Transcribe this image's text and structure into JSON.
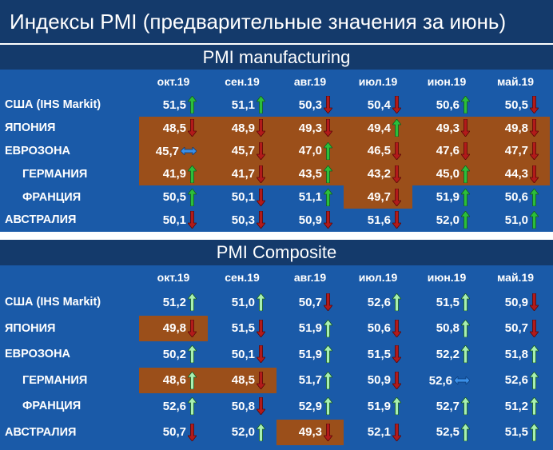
{
  "title": "Индексы PMI (предварительные значения за июнь)",
  "colors": {
    "header_bg": "#143a6b",
    "panel_bg": "#1a5aa8",
    "highlight": "#9b4f1a",
    "arrow_up_mfg": "#2bbf3a",
    "arrow_up_comp": "#a8f0b0",
    "arrow_down": "#b21a1a",
    "arrow_flat": "#3a8fe8"
  },
  "chart_data": [
    {
      "type": "table",
      "title": "PMI manufacturing",
      "columns": [
        "окт.19",
        "сен.19",
        "авг.19",
        "июл.19",
        "июн.19",
        "май.19"
      ],
      "rows": [
        {
          "country": "США (IHS Markit)",
          "indent": false,
          "values": [
            "51,5",
            "51,1",
            "50,3",
            "50,4",
            "50,6",
            "50,5"
          ],
          "trend": [
            "up",
            "up",
            "down",
            "down",
            "up",
            "down"
          ],
          "highlight": [
            false,
            false,
            false,
            false,
            false,
            false
          ]
        },
        {
          "country": "ЯПОНИЯ",
          "indent": false,
          "values": [
            "48,5",
            "48,9",
            "49,3",
            "49,4",
            "49,3",
            "49,8"
          ],
          "trend": [
            "down",
            "down",
            "down",
            "up",
            "down",
            "down"
          ],
          "highlight": [
            true,
            true,
            true,
            true,
            true,
            true
          ]
        },
        {
          "country": "ЕВРОЗОНА",
          "indent": false,
          "values": [
            "45,7",
            "45,7",
            "47,0",
            "46,5",
            "47,6",
            "47,7"
          ],
          "trend": [
            "flat",
            "down",
            "up",
            "down",
            "down",
            "down"
          ],
          "highlight": [
            true,
            true,
            true,
            true,
            true,
            true
          ]
        },
        {
          "country": "ГЕРМАНИЯ",
          "indent": true,
          "values": [
            "41,9",
            "41,7",
            "43,5",
            "43,2",
            "45,0",
            "44,3"
          ],
          "trend": [
            "up",
            "down",
            "up",
            "down",
            "up",
            "down"
          ],
          "highlight": [
            true,
            true,
            true,
            true,
            true,
            true
          ]
        },
        {
          "country": "ФРАНЦИЯ",
          "indent": true,
          "values": [
            "50,5",
            "50,1",
            "51,1",
            "49,7",
            "51,9",
            "50,6"
          ],
          "trend": [
            "up",
            "down",
            "up",
            "down",
            "up",
            "up"
          ],
          "highlight": [
            false,
            false,
            false,
            true,
            false,
            false
          ]
        },
        {
          "country": "АВСТРАЛИЯ",
          "indent": false,
          "values": [
            "50,1",
            "50,3",
            "50,9",
            "51,6",
            "52,0",
            "51,0"
          ],
          "trend": [
            "down",
            "down",
            "down",
            "down",
            "up",
            "up"
          ],
          "highlight": [
            false,
            false,
            false,
            false,
            false,
            false
          ]
        }
      ]
    },
    {
      "type": "table",
      "title": "PMI Composite",
      "columns": [
        "окт.19",
        "сен.19",
        "авг.19",
        "июл.19",
        "июн.19",
        "май.19"
      ],
      "rows": [
        {
          "country": "США (IHS Markit)",
          "indent": false,
          "values": [
            "51,2",
            "51,0",
            "50,7",
            "52,6",
            "51,5",
            "50,9"
          ],
          "trend": [
            "up",
            "up",
            "down",
            "up",
            "up",
            "down"
          ],
          "highlight": [
            false,
            false,
            false,
            false,
            false,
            false
          ]
        },
        {
          "country": "ЯПОНИЯ",
          "indent": false,
          "values": [
            "49,8",
            "51,5",
            "51,9",
            "50,6",
            "50,8",
            "50,7"
          ],
          "trend": [
            "down",
            "down",
            "up",
            "down",
            "up",
            "down"
          ],
          "highlight": [
            true,
            false,
            false,
            false,
            false,
            false
          ]
        },
        {
          "country": "ЕВРОЗОНА",
          "indent": false,
          "values": [
            "50,2",
            "50,1",
            "51,9",
            "51,5",
            "52,2",
            "51,8"
          ],
          "trend": [
            "up",
            "down",
            "up",
            "down",
            "up",
            "up"
          ],
          "highlight": [
            false,
            false,
            false,
            false,
            false,
            false
          ]
        },
        {
          "country": "ГЕРМАНИЯ",
          "indent": true,
          "values": [
            "48,6",
            "48,5",
            "51,7",
            "50,9",
            "52,6",
            "52,6"
          ],
          "trend": [
            "up",
            "down",
            "up",
            "down",
            "flat",
            "up"
          ],
          "highlight": [
            true,
            true,
            false,
            false,
            false,
            false
          ]
        },
        {
          "country": "ФРАНЦИЯ",
          "indent": true,
          "values": [
            "52,6",
            "50,8",
            "52,9",
            "51,9",
            "52,7",
            "51,2"
          ],
          "trend": [
            "up",
            "down",
            "up",
            "up",
            "up",
            "up"
          ],
          "highlight": [
            false,
            false,
            false,
            false,
            false,
            false
          ]
        },
        {
          "country": "АВСТРАЛИЯ",
          "indent": false,
          "values": [
            "50,7",
            "52,0",
            "49,3",
            "52,1",
            "52,5",
            "51,5"
          ],
          "trend": [
            "down",
            "up",
            "down",
            "down",
            "up",
            "up"
          ],
          "highlight": [
            false,
            false,
            true,
            false,
            false,
            false
          ]
        }
      ]
    }
  ]
}
